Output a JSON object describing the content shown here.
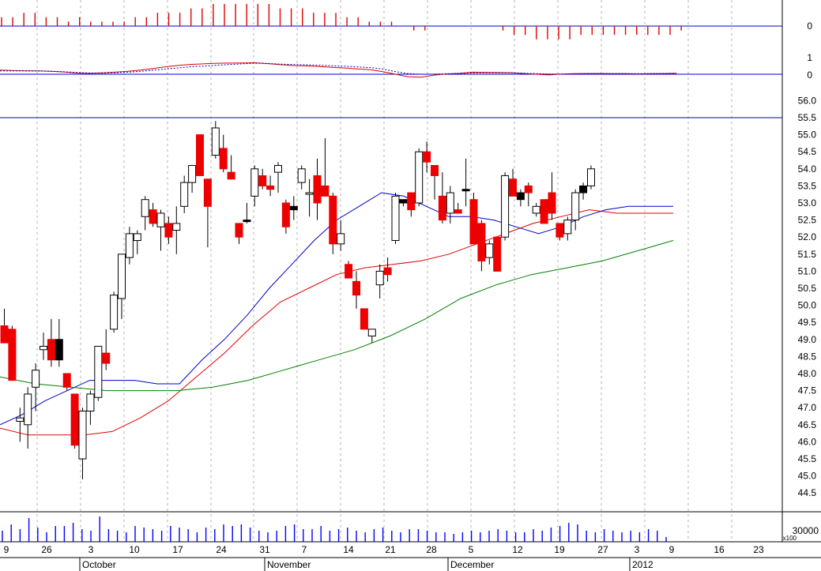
{
  "colors": {
    "macd_hist": "#e00000",
    "macd_line": "#e00000",
    "macd_signal": "#0000cc",
    "ref_line": "#0000cc",
    "up_candle": "#ffffff",
    "down_candle": "#ee0000",
    "doji_candle": "#000000",
    "ma_short": "#0000cc",
    "ma_mid": "#e00000",
    "ma_long": "#008000",
    "volume": "#0000ff",
    "grid": "#b0b0b0"
  },
  "chart_data": [
    {
      "type": "bar",
      "panel": "histogram",
      "y_ticks": [
        "0"
      ],
      "values": [
        0.02,
        0.02,
        0.03,
        0.03,
        0.02,
        0.02,
        0.01,
        0.02,
        0.01,
        0.01,
        0.01,
        0.01,
        0.02,
        0.02,
        0.03,
        0.03,
        0.03,
        0.04,
        0.04,
        0.05,
        0.05,
        0.05,
        0.05,
        0.05,
        0.05,
        0.04,
        0.04,
        0.04,
        0.03,
        0.03,
        0.03,
        0.02,
        0.02,
        0.01,
        0.01,
        0.01,
        0,
        -0.01,
        -0.01,
        0,
        0,
        0,
        0,
        0,
        0,
        -0.01,
        -0.02,
        -0.02,
        -0.03,
        -0.03,
        -0.03,
        -0.03,
        -0.02,
        -0.02,
        -0.02,
        -0.02,
        -0.02,
        -0.02,
        -0.02,
        -0.02,
        -0.02,
        -0.01,
        0
      ]
    },
    {
      "type": "line",
      "panel": "oscillator",
      "y_ticks": [
        "1",
        "0"
      ],
      "series": [
        {
          "line": "solid",
          "values": [
            0.24,
            0.21,
            0.19,
            0.19,
            0.17,
            0.13,
            0.07,
            0.05,
            0.08,
            0.12,
            0.17,
            0.24,
            0.33,
            0.43,
            0.51,
            0.57,
            0.6,
            0.63,
            0.64,
            0.65,
            0.66,
            0.61,
            0.55,
            0.5,
            0.48,
            0.44,
            0.4,
            0.36,
            0.31,
            0.26,
            0.15,
            0,
            -0.15,
            -0.17,
            -0.05,
            0.02,
            0.05,
            0.12,
            0.11,
            0.1,
            0.09,
            0.04,
            0,
            -0.04,
            0.01,
            0.03,
            0.04,
            0.04,
            0.03,
            0.03,
            0.02,
            0.03,
            0.04,
            0.06
          ]
        },
        {
          "line": "dashed",
          "values": [
            0.19,
            0.19,
            0.2,
            0.19,
            0.17,
            0.14,
            0.1,
            0.07,
            0.06,
            0.08,
            0.12,
            0.17,
            0.23,
            0.3,
            0.37,
            0.43,
            0.47,
            0.52,
            0.56,
            0.6,
            0.63,
            0.62,
            0.58,
            0.56,
            0.54,
            0.52,
            0.49,
            0.46,
            0.42,
            0.38,
            0.3,
            0.15,
            0.03,
            0,
            0,
            0.03,
            0.04,
            0.07,
            0.08,
            0.08,
            0.08,
            0.06,
            0.03,
            0.01,
            0.01,
            0.02,
            0.03,
            0.03,
            0.03,
            0.03,
            0.03,
            0.03,
            0.03,
            0.03
          ]
        }
      ]
    },
    {
      "type": "candlestick",
      "panel": "price",
      "y_ticks": [
        "56.0",
        "55.5",
        "55.0",
        "54.5",
        "54.0",
        "53.5",
        "53.0",
        "52.5",
        "52.0",
        "51.5",
        "51.0",
        "50.5",
        "50.0",
        "49.5",
        "49.0",
        "48.5",
        "48.0",
        "47.5",
        "47.0",
        "46.5",
        "46.0",
        "45.5",
        "45.0",
        "44.5"
      ],
      "x_tick_labels": [
        "9",
        "26",
        "3",
        "10",
        "17",
        "24",
        "31",
        "7",
        "14",
        "21",
        "28",
        "5",
        "12",
        "19",
        "27",
        "3",
        "9",
        "16",
        "23"
      ],
      "month_labels": [
        "October",
        "November",
        "December",
        "2012"
      ],
      "reference_line": 55.5,
      "candles": [
        {
          "o": 49.4,
          "h": 49.9,
          "l": 48.9,
          "c": 48.9
        },
        {
          "o": 49.3,
          "h": 49.4,
          "l": 47.8,
          "c": 47.8
        },
        {
          "o": 46.6,
          "h": 47.0,
          "l": 46.0,
          "c": 46.7
        },
        {
          "o": 46.5,
          "h": 47.6,
          "l": 45.8,
          "c": 47.4
        },
        {
          "o": 47.6,
          "h": 48.3,
          "l": 46.9,
          "c": 48.1
        },
        {
          "o": 48.7,
          "h": 49.2,
          "l": 48.4,
          "c": 48.8
        },
        {
          "o": 49.0,
          "h": 49.6,
          "l": 48.2,
          "c": 48.4
        },
        {
          "o": 49.0,
          "h": 49.6,
          "l": 48.2,
          "c": 48.4,
          "doji": true
        },
        {
          "o": 48.0,
          "h": 48.0,
          "l": 47.5,
          "c": 47.6
        },
        {
          "o": 47.4,
          "h": 47.4,
          "l": 45.8,
          "c": 45.9
        },
        {
          "o": 45.5,
          "h": 47.0,
          "l": 44.9,
          "c": 46.9
        },
        {
          "o": 46.9,
          "h": 47.5,
          "l": 46.5,
          "c": 47.4
        },
        {
          "o": 47.3,
          "h": 48.8,
          "l": 47.2,
          "c": 48.8
        },
        {
          "o": 48.6,
          "h": 49.3,
          "l": 48.1,
          "c": 48.3
        },
        {
          "o": 49.3,
          "h": 50.4,
          "l": 49.2,
          "c": 50.3
        },
        {
          "o": 50.2,
          "h": 51.5,
          "l": 49.6,
          "c": 51.5
        },
        {
          "o": 51.4,
          "h": 52.3,
          "l": 51.2,
          "c": 52.1
        },
        {
          "o": 51.9,
          "h": 52.2,
          "l": 51.5,
          "c": 52.1
        },
        {
          "o": 52.6,
          "h": 53.2,
          "l": 52.2,
          "c": 53.1
        },
        {
          "o": 52.8,
          "h": 53.0,
          "l": 52.3,
          "c": 52.4
        },
        {
          "o": 52.3,
          "h": 52.8,
          "l": 51.6,
          "c": 52.7
        },
        {
          "o": 52.4,
          "h": 52.6,
          "l": 51.8,
          "c": 52.0
        },
        {
          "o": 52.2,
          "h": 52.9,
          "l": 51.5,
          "c": 52.4
        },
        {
          "o": 52.9,
          "h": 53.8,
          "l": 52.7,
          "c": 53.6
        },
        {
          "o": 53.6,
          "h": 54.1,
          "l": 53.3,
          "c": 54.1
        },
        {
          "o": 55.0,
          "h": 55.0,
          "l": 53.8,
          "c": 53.8
        },
        {
          "o": 53.7,
          "h": 53.7,
          "l": 51.7,
          "c": 52.9
        },
        {
          "o": 54.4,
          "h": 55.4,
          "l": 54.3,
          "c": 55.2
        },
        {
          "o": 54.6,
          "h": 55.0,
          "l": 53.9,
          "c": 54.0
        },
        {
          "o": 53.9,
          "h": 54.4,
          "l": 53.7,
          "c": 53.7
        },
        {
          "o": 52.4,
          "h": 52.4,
          "l": 51.8,
          "c": 52.0
        },
        {
          "o": 52.5,
          "h": 53.0,
          "l": 52.4,
          "c": 52.5,
          "doji": true
        },
        {
          "o": 53.2,
          "h": 54.1,
          "l": 52.9,
          "c": 54.0
        },
        {
          "o": 53.8,
          "h": 54.0,
          "l": 53.4,
          "c": 53.5
        },
        {
          "o": 53.5,
          "h": 53.8,
          "l": 53.2,
          "c": 53.4
        },
        {
          "o": 53.9,
          "h": 54.2,
          "l": 53.3,
          "c": 54.1
        },
        {
          "o": 53.0,
          "h": 53.1,
          "l": 52.1,
          "c": 52.3
        },
        {
          "o": 52.8,
          "h": 53.2,
          "l": 52.5,
          "c": 52.9,
          "doji": true
        },
        {
          "o": 53.6,
          "h": 54.1,
          "l": 53.4,
          "c": 54.0
        },
        {
          "o": 53.3,
          "h": 53.7,
          "l": 52.6,
          "c": 53.3
        },
        {
          "o": 53.8,
          "h": 54.3,
          "l": 52.5,
          "c": 53.0
        },
        {
          "o": 53.5,
          "h": 54.9,
          "l": 53.3,
          "c": 53.2
        },
        {
          "o": 53.2,
          "h": 53.3,
          "l": 51.5,
          "c": 51.8
        },
        {
          "o": 51.8,
          "h": 52.5,
          "l": 51.6,
          "c": 52.1
        },
        {
          "o": 51.2,
          "h": 51.3,
          "l": 50.9,
          "c": 50.8
        },
        {
          "o": 50.7,
          "h": 51.0,
          "l": 49.9,
          "c": 50.3
        },
        {
          "o": 49.9,
          "h": 49.9,
          "l": 49.3,
          "c": 49.3
        },
        {
          "o": 49.1,
          "h": 49.2,
          "l": 48.9,
          "c": 49.3
        },
        {
          "o": 50.6,
          "h": 51.2,
          "l": 50.2,
          "c": 51.0
        },
        {
          "o": 51.1,
          "h": 51.4,
          "l": 50.7,
          "c": 50.9
        },
        {
          "o": 51.9,
          "h": 53.3,
          "l": 51.8,
          "c": 53.2
        },
        {
          "o": 53.1,
          "h": 53.1,
          "l": 52.9,
          "c": 53.0,
          "doji": true
        },
        {
          "o": 53.3,
          "h": 53.3,
          "l": 52.6,
          "c": 52.8
        },
        {
          "o": 53.0,
          "h": 54.6,
          "l": 52.9,
          "c": 54.5
        },
        {
          "o": 54.5,
          "h": 54.8,
          "l": 53.9,
          "c": 54.2
        },
        {
          "o": 54.1,
          "h": 54.1,
          "l": 53.1,
          "c": 53.8
        },
        {
          "o": 53.2,
          "h": 53.9,
          "l": 52.4,
          "c": 52.5
        },
        {
          "o": 52.7,
          "h": 53.5,
          "l": 52.4,
          "c": 53.3
        },
        {
          "o": 52.8,
          "h": 53.0,
          "l": 52.7,
          "c": 52.7
        },
        {
          "o": 53.4,
          "h": 54.3,
          "l": 52.9,
          "c": 53.4,
          "doji": true
        },
        {
          "o": 53.1,
          "h": 53.3,
          "l": 51.8,
          "c": 51.8
        },
        {
          "o": 52.4,
          "h": 52.5,
          "l": 51.0,
          "c": 51.3
        },
        {
          "o": 51.4,
          "h": 51.9,
          "l": 51.2,
          "c": 51.8
        },
        {
          "o": 52.0,
          "h": 52.0,
          "l": 51.0,
          "c": 51.0
        },
        {
          "o": 52.0,
          "h": 53.9,
          "l": 51.9,
          "c": 53.8
        },
        {
          "o": 53.7,
          "h": 54.0,
          "l": 53.2,
          "c": 53.2
        },
        {
          "o": 53.3,
          "h": 53.4,
          "l": 52.9,
          "c": 53.1,
          "doji": true
        },
        {
          "o": 53.5,
          "h": 53.6,
          "l": 52.9,
          "c": 53.3
        },
        {
          "o": 52.7,
          "h": 53.0,
          "l": 52.6,
          "c": 52.9
        },
        {
          "o": 53.1,
          "h": 53.1,
          "l": 52.4,
          "c": 52.4
        },
        {
          "o": 53.3,
          "h": 53.9,
          "l": 52.5,
          "c": 52.7
        },
        {
          "o": 52.4,
          "h": 52.4,
          "l": 51.9,
          "c": 52.0
        },
        {
          "o": 52.1,
          "h": 52.6,
          "l": 51.9,
          "c": 52.5
        },
        {
          "o": 52.5,
          "h": 53.4,
          "l": 52.2,
          "c": 53.3
        },
        {
          "o": 53.5,
          "h": 53.6,
          "l": 53.1,
          "c": 53.3,
          "doji": true
        },
        {
          "o": 53.5,
          "h": 54.1,
          "l": 53.4,
          "c": 54.0
        }
      ],
      "moving_averages": [
        {
          "color_key": "ma_short",
          "values": [
            46.5,
            46.8,
            47.2,
            47.5,
            47.8,
            47.8,
            47.8,
            47.7,
            47.7,
            48.4,
            49.0,
            49.7,
            50.5,
            51.2,
            51.9,
            52.5,
            52.9,
            53.3,
            53.2,
            52.9,
            52.6,
            52.6,
            52.5,
            52.3,
            52.1,
            52.3,
            52.6,
            52.8,
            52.9,
            52.9,
            52.9
          ]
        },
        {
          "color_key": "ma_mid",
          "values": [
            46.4,
            46.2,
            46.2,
            46.2,
            46.3,
            46.7,
            47.2,
            47.9,
            48.6,
            49.4,
            50.1,
            50.5,
            50.9,
            51.1,
            51.2,
            51.3,
            51.5,
            51.8,
            52.1,
            52.4,
            52.6,
            52.8,
            52.7,
            52.7,
            52.7
          ]
        },
        {
          "color_key": "ma_long",
          "values": [
            47.9,
            47.7,
            47.6,
            47.5,
            47.5,
            47.5,
            47.6,
            47.8,
            48.1,
            48.4,
            48.7,
            49.1,
            49.6,
            50.2,
            50.6,
            50.9,
            51.1,
            51.3,
            51.6,
            51.9
          ]
        }
      ]
    },
    {
      "type": "bar",
      "panel": "volume",
      "y_ticks": [
        "30000"
      ],
      "unit_label": "x100",
      "values": [
        0.35,
        0.55,
        0.4,
        0.75,
        0.45,
        0.3,
        0.5,
        0.5,
        0.6,
        0.4,
        0.35,
        0.8,
        0.4,
        0.35,
        0.3,
        0.5,
        0.45,
        0.4,
        0.35,
        0.5,
        0.45,
        0.4,
        0.3,
        0.45,
        0.4,
        0.55,
        0.5,
        0.55,
        0.45,
        0.35,
        0.3,
        0.35,
        0.5,
        0.55,
        0.4,
        0.4,
        0.5,
        0.35,
        0.4,
        0.45,
        0.35,
        0.3,
        0.4,
        0.45,
        0.35,
        0.3,
        0.4,
        0.4,
        0.35,
        0.3,
        0.3,
        0.25,
        0.3,
        0.35,
        0.3,
        0.35,
        0.4,
        0.35,
        0.3,
        0.3,
        0.4,
        0.35,
        0.45,
        0.5,
        0.6,
        0.55,
        0.35,
        0.3,
        0.4,
        0.35,
        0.3,
        0.35,
        0.3,
        0.4,
        0.35,
        0.15
      ]
    }
  ]
}
